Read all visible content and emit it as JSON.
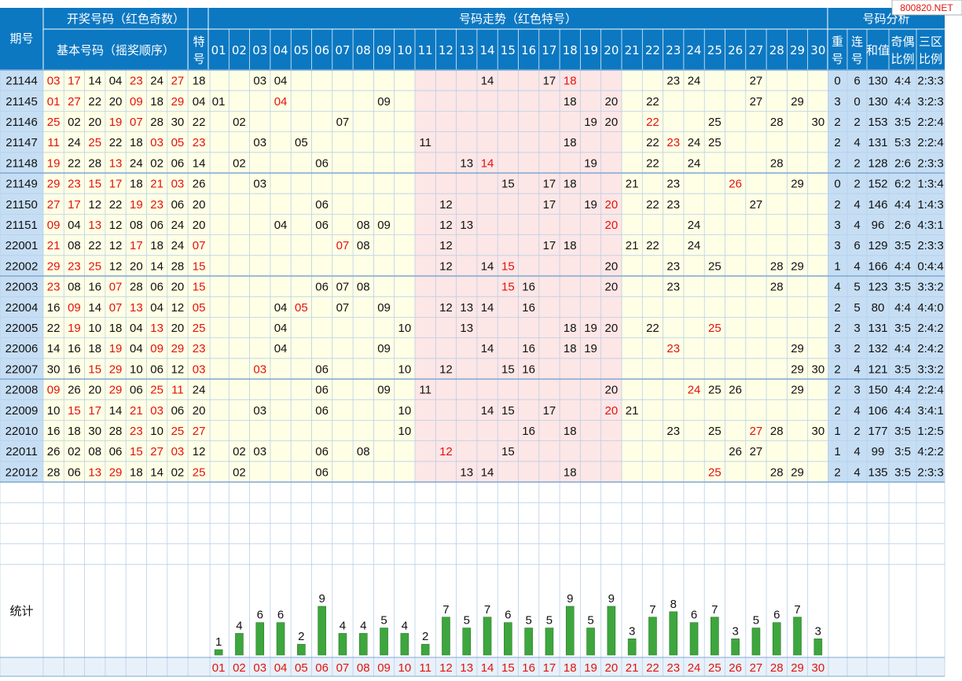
{
  "header": {
    "period_label": "期号",
    "draw_title": "开奖号码（红色奇数）",
    "basic_label": "基本号码（摇奖顺序）",
    "special_label": [
      "特",
      "号"
    ],
    "trend_title": "号码走势（红色特号）",
    "analysis_title": "号码分析",
    "analysis_cols": [
      [
        "重",
        "号"
      ],
      [
        "连",
        "号"
      ],
      [
        "和值",
        ""
      ],
      [
        "奇偶",
        "比例"
      ],
      [
        "三区",
        "比例"
      ]
    ],
    "watermark": "800820.NET"
  },
  "colors": {
    "header_bg": "#0c78c2",
    "odd_red": "#e3120b",
    "zone_a": "#ffffe6",
    "zone_b": "#fde6e6",
    "analysis_bg": "#c6def4",
    "bar_green": "#3da63d"
  },
  "chart_data": {
    "type": "table",
    "numbers": [
      "01",
      "02",
      "03",
      "04",
      "05",
      "06",
      "07",
      "08",
      "09",
      "10",
      "11",
      "12",
      "13",
      "14",
      "15",
      "16",
      "17",
      "18",
      "19",
      "20",
      "21",
      "22",
      "23",
      "24",
      "25",
      "26",
      "27",
      "28",
      "29",
      "30"
    ],
    "rows": [
      {
        "period": "21144",
        "basic": [
          "03",
          "17",
          "14",
          "04",
          "23",
          "24",
          "27"
        ],
        "special": "18",
        "repeat": "0",
        "consec": "6",
        "sum": "130",
        "odd_even": "4:4",
        "zone": "2:3:3"
      },
      {
        "period": "21145",
        "basic": [
          "01",
          "27",
          "22",
          "20",
          "09",
          "18",
          "29"
        ],
        "special": "04",
        "repeat": "3",
        "consec": "0",
        "sum": "130",
        "odd_even": "4:4",
        "zone": "3:2:3"
      },
      {
        "period": "21146",
        "basic": [
          "25",
          "02",
          "20",
          "19",
          "07",
          "28",
          "30"
        ],
        "special": "22",
        "repeat": "2",
        "consec": "2",
        "sum": "153",
        "odd_even": "3:5",
        "zone": "2:2:4"
      },
      {
        "period": "21147",
        "basic": [
          "11",
          "24",
          "25",
          "22",
          "18",
          "03",
          "05"
        ],
        "special": "23",
        "repeat": "2",
        "consec": "4",
        "sum": "131",
        "odd_even": "5:3",
        "zone": "2:2:4"
      },
      {
        "period": "21148",
        "basic": [
          "19",
          "22",
          "28",
          "13",
          "24",
          "02",
          "06"
        ],
        "special": "14",
        "repeat": "2",
        "consec": "2",
        "sum": "128",
        "odd_even": "2:6",
        "zone": "2:3:3"
      },
      {
        "period": "21149",
        "basic": [
          "29",
          "23",
          "15",
          "17",
          "18",
          "21",
          "03"
        ],
        "special": "26",
        "repeat": "0",
        "consec": "2",
        "sum": "152",
        "odd_even": "6:2",
        "zone": "1:3:4"
      },
      {
        "period": "21150",
        "basic": [
          "27",
          "17",
          "12",
          "22",
          "19",
          "23",
          "06"
        ],
        "special": "20",
        "repeat": "2",
        "consec": "4",
        "sum": "146",
        "odd_even": "4:4",
        "zone": "1:4:3"
      },
      {
        "period": "21151",
        "basic": [
          "09",
          "04",
          "13",
          "12",
          "08",
          "06",
          "24"
        ],
        "special": "20",
        "repeat": "3",
        "consec": "4",
        "sum": "96",
        "odd_even": "2:6",
        "zone": "4:3:1"
      },
      {
        "period": "22001",
        "basic": [
          "21",
          "08",
          "22",
          "12",
          "17",
          "18",
          "24"
        ],
        "special": "07",
        "repeat": "3",
        "consec": "6",
        "sum": "129",
        "odd_even": "3:5",
        "zone": "2:3:3"
      },
      {
        "period": "22002",
        "basic": [
          "29",
          "23",
          "25",
          "12",
          "20",
          "14",
          "28"
        ],
        "special": "15",
        "repeat": "1",
        "consec": "4",
        "sum": "166",
        "odd_even": "4:4",
        "zone": "0:4:4"
      },
      {
        "period": "22003",
        "basic": [
          "23",
          "08",
          "16",
          "07",
          "28",
          "06",
          "20"
        ],
        "special": "15",
        "repeat": "4",
        "consec": "5",
        "sum": "123",
        "odd_even": "3:5",
        "zone": "3:3:2"
      },
      {
        "period": "22004",
        "basic": [
          "16",
          "09",
          "14",
          "07",
          "13",
          "04",
          "12"
        ],
        "special": "05",
        "repeat": "2",
        "consec": "5",
        "sum": "80",
        "odd_even": "4:4",
        "zone": "4:4:0"
      },
      {
        "period": "22005",
        "basic": [
          "22",
          "19",
          "10",
          "18",
          "04",
          "13",
          "20"
        ],
        "special": "25",
        "repeat": "2",
        "consec": "3",
        "sum": "131",
        "odd_even": "3:5",
        "zone": "2:4:2"
      },
      {
        "period": "22006",
        "basic": [
          "14",
          "16",
          "18",
          "19",
          "04",
          "09",
          "29"
        ],
        "special": "23",
        "repeat": "3",
        "consec": "2",
        "sum": "132",
        "odd_even": "4:4",
        "zone": "2:4:2"
      },
      {
        "period": "22007",
        "basic": [
          "30",
          "16",
          "15",
          "29",
          "10",
          "06",
          "12"
        ],
        "special": "03",
        "repeat": "2",
        "consec": "4",
        "sum": "121",
        "odd_even": "3:5",
        "zone": "3:3:2"
      },
      {
        "period": "22008",
        "basic": [
          "09",
          "26",
          "20",
          "29",
          "06",
          "25",
          "11"
        ],
        "special": "24",
        "repeat": "2",
        "consec": "3",
        "sum": "150",
        "odd_even": "4:4",
        "zone": "2:2:4"
      },
      {
        "period": "22009",
        "basic": [
          "10",
          "15",
          "17",
          "14",
          "21",
          "03",
          "06"
        ],
        "special": "20",
        "repeat": "2",
        "consec": "4",
        "sum": "106",
        "odd_even": "4:4",
        "zone": "3:4:1"
      },
      {
        "period": "22010",
        "basic": [
          "16",
          "18",
          "30",
          "28",
          "23",
          "10",
          "25"
        ],
        "special": "27",
        "repeat": "1",
        "consec": "2",
        "sum": "177",
        "odd_even": "3:5",
        "zone": "1:2:5"
      },
      {
        "period": "22011",
        "basic": [
          "26",
          "02",
          "08",
          "06",
          "15",
          "27",
          "03"
        ],
        "special": "12",
        "repeat": "1",
        "consec": "4",
        "sum": "99",
        "odd_even": "3:5",
        "zone": "4:2:2"
      },
      {
        "period": "22012",
        "basic": [
          "28",
          "06",
          "13",
          "29",
          "18",
          "14",
          "02"
        ],
        "special": "25",
        "repeat": "2",
        "consec": "4",
        "sum": "135",
        "odd_even": "3:5",
        "zone": "2:3:3"
      }
    ],
    "stats_label": "统计",
    "stats": [
      1,
      4,
      6,
      6,
      2,
      9,
      4,
      4,
      5,
      4,
      2,
      7,
      5,
      7,
      6,
      5,
      5,
      9,
      5,
      9,
      3,
      7,
      8,
      6,
      7,
      3,
      5,
      6,
      7,
      3
    ],
    "empty_rows": 4
  }
}
